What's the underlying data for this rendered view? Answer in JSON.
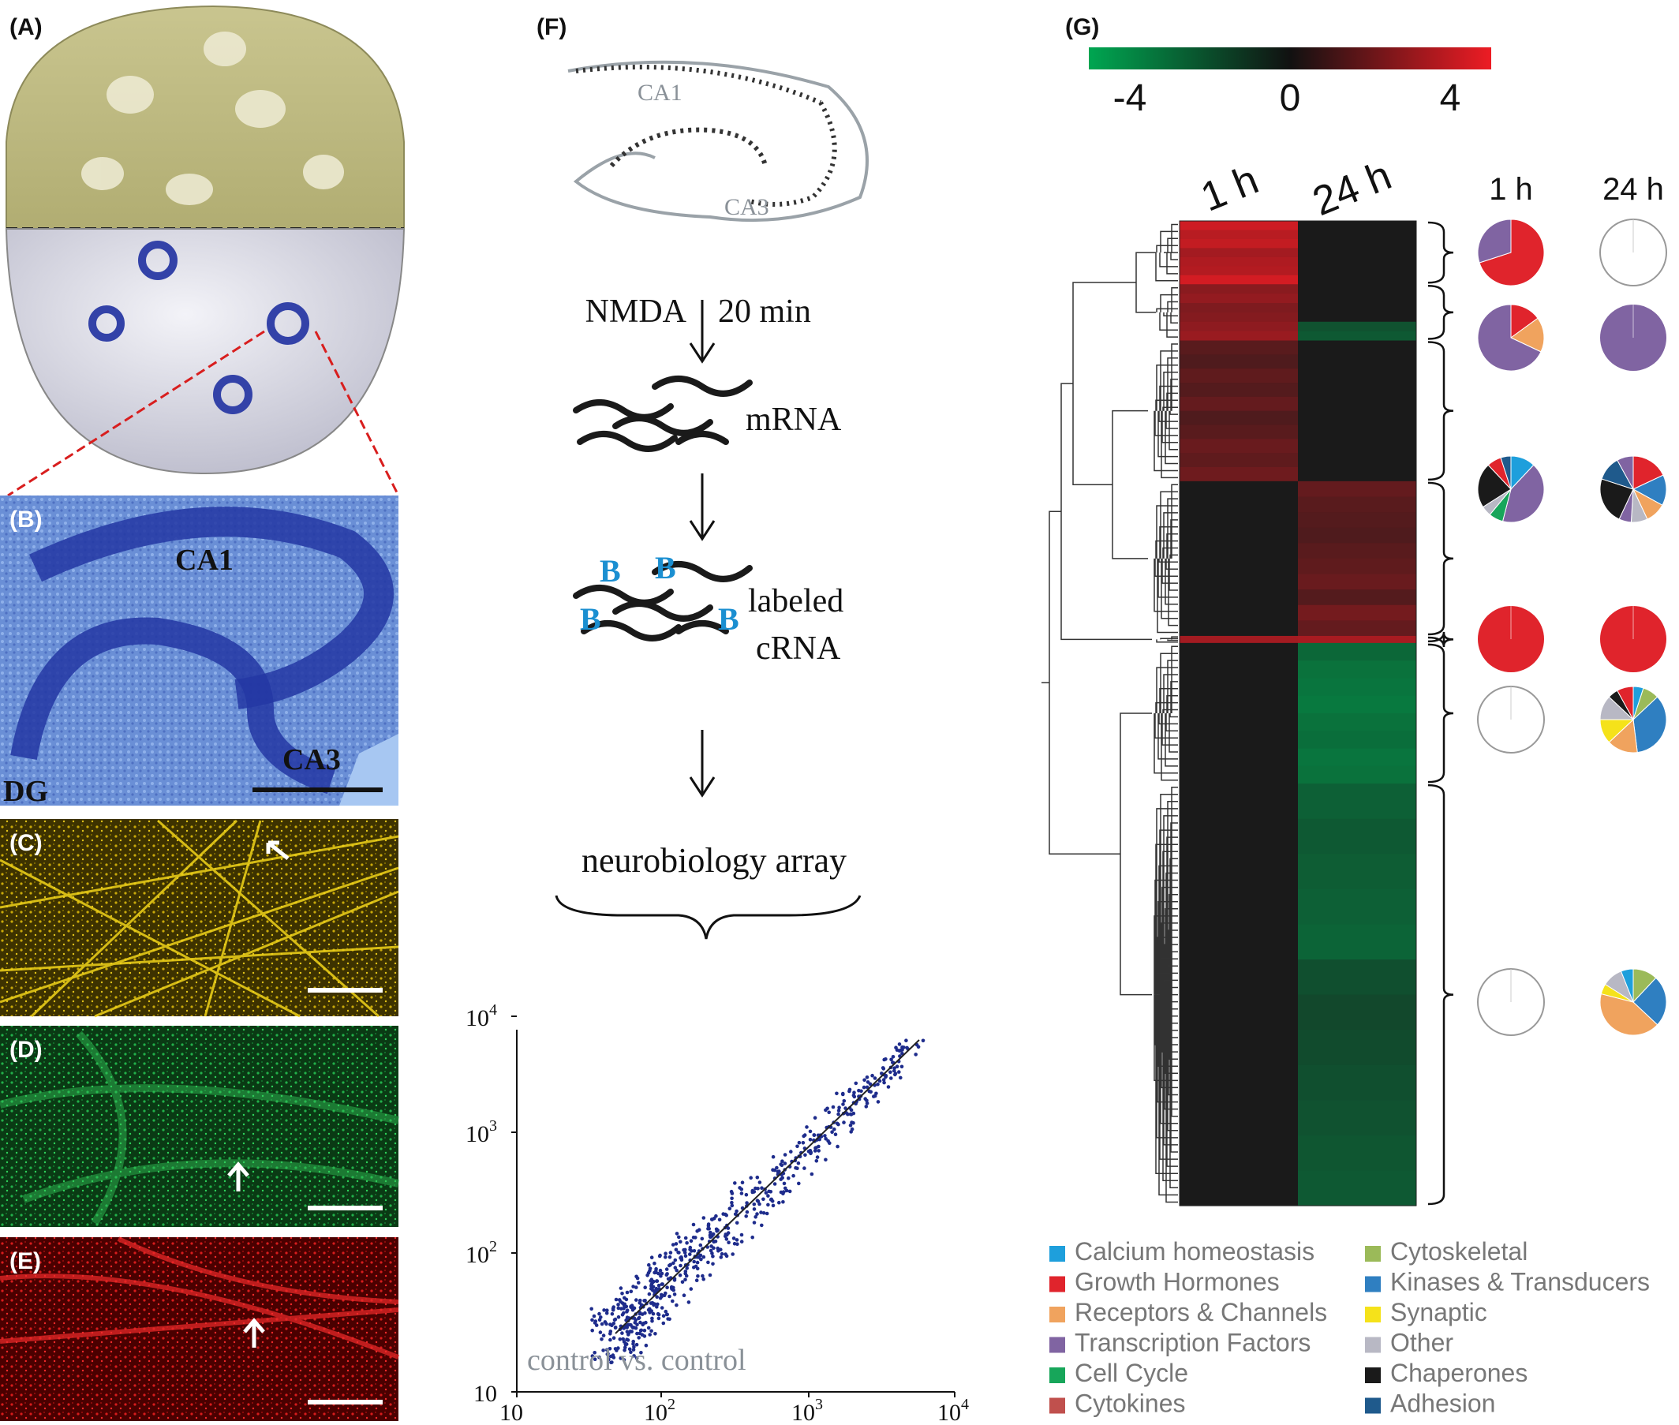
{
  "figure": {
    "panels": {
      "a": "(A)",
      "b": "(B)",
      "c": "(C)",
      "d": "(D)",
      "e": "(E)",
      "f": "(F)",
      "g": "(G)"
    },
    "panel_b_labels": {
      "ca1": "CA1",
      "ca3": "CA3",
      "dg": "DG"
    },
    "workflow": {
      "schematic_labels": {
        "ca1": "CA1",
        "ca3": "CA3"
      },
      "step1": {
        "left": "NMDA",
        "right": "20 min"
      },
      "mrna": "mRNA",
      "biotin": [
        "B",
        "B",
        "B",
        "B"
      ],
      "labeled_line1": "labeled",
      "labeled_line2": "cRNA",
      "array": "neurobiology array"
    },
    "scatter": {
      "annotation": "control vs. control",
      "y_ticks": [
        {
          "base": "10",
          "exp": "4"
        },
        {
          "base": "10",
          "exp": "3"
        },
        {
          "base": "10",
          "exp": "2"
        },
        {
          "base": "10",
          "exp": ""
        }
      ],
      "x_ticks": [
        {
          "base": "10",
          "exp": ""
        },
        {
          "base": "10",
          "exp": "2"
        },
        {
          "base": "10",
          "exp": "3"
        },
        {
          "base": "10",
          "exp": "4"
        }
      ]
    },
    "heatmap": {
      "color_scale": {
        "min": -4,
        "max": 4,
        "low_color": "#00a651",
        "mid_color": "#1a1a1a",
        "high_color": "#ed1c24"
      },
      "colorbar_ticks": [
        "-4",
        "0",
        "4"
      ],
      "columns": [
        "1 h",
        "24 h"
      ],
      "pie_headers": [
        "1 h",
        "24 h"
      ],
      "clusters": [
        {
          "rows": 9,
          "values_1h": [
            3.4,
            3.0,
            3.2,
            2.6,
            2.8,
            2.9,
            3.5
          ],
          "values_24h": [
            0,
            0,
            0,
            0,
            0,
            0,
            0
          ]
        },
        {
          "rows": 8,
          "values_1h": [
            2.1,
            2.3,
            1.9,
            2.0,
            2.2,
            2.4
          ],
          "values_24h": [
            0,
            0,
            0,
            0,
            -1.6,
            -1.8
          ]
        },
        {
          "rows": 20,
          "values_1h": [
            1.2,
            1.0,
            1.3,
            1.1,
            1.4,
            1.0,
            1.2,
            1.5,
            1.3,
            1.6
          ],
          "values_24h": [
            0,
            0,
            0,
            0,
            0,
            0,
            0,
            0,
            0,
            0
          ]
        },
        {
          "rows": 22,
          "values_1h": [
            0,
            0,
            0,
            0,
            0,
            0,
            0,
            0,
            0,
            0
          ],
          "values_24h": [
            1.4,
            1.2,
            1.1,
            1.0,
            1.2,
            1.3,
            1.5,
            1.1,
            1.7,
            1.4
          ]
        },
        {
          "rows": 1,
          "values_1h": [
            2.6
          ],
          "values_24h": [
            2.7
          ]
        },
        {
          "rows": 20,
          "values_1h": [
            0,
            0,
            0,
            0,
            0,
            0,
            0,
            0
          ],
          "values_24h": [
            -2.2,
            -2.5,
            -2.6,
            -2.7,
            -2.5,
            -2.4,
            -2.6,
            -2.5
          ]
        },
        {
          "rows": 60,
          "values_1h": [
            0,
            0,
            0,
            0,
            0,
            0,
            0,
            0,
            0,
            0,
            0,
            0
          ],
          "values_24h": [
            -2.0,
            -1.8,
            -1.9,
            -2.0,
            -2.1,
            -1.5,
            -1.3,
            -1.4,
            -1.5,
            -1.6,
            -1.7,
            -1.8
          ]
        }
      ],
      "pies": [
        {
          "p1h": [
            {
              "category": "Growth Hormones",
              "value": 0.7
            },
            {
              "category": "Transcription Factors",
              "value": 0.3
            }
          ],
          "p24h": []
        },
        {
          "p1h": [
            {
              "category": "Growth Hormones",
              "value": 0.15
            },
            {
              "category": "Receptors & Channels",
              "value": 0.17
            },
            {
              "category": "Transcription Factors",
              "value": 0.68
            }
          ],
          "p24h": [
            {
              "category": "Transcription Factors",
              "value": 1.0
            }
          ]
        },
        {
          "p1h": [
            {
              "category": "Calcium homeostasis",
              "value": 0.12
            },
            {
              "category": "Transcription Factors",
              "value": 0.42
            },
            {
              "category": "Cell Cycle",
              "value": 0.07
            },
            {
              "category": "Other",
              "value": 0.05
            },
            {
              "category": "Chaperones",
              "value": 0.22
            },
            {
              "category": "Growth Hormones",
              "value": 0.07
            },
            {
              "category": "Adhesion",
              "value": 0.05
            }
          ],
          "p24h": [
            {
              "category": "Growth Hormones",
              "value": 0.18
            },
            {
              "category": "Kinases & Transducers",
              "value": 0.15
            },
            {
              "category": "Receptors & Channels",
              "value": 0.1
            },
            {
              "category": "Other",
              "value": 0.08
            },
            {
              "category": "Transcription Factors",
              "value": 0.06
            },
            {
              "category": "Chaperones",
              "value": 0.23
            },
            {
              "category": "Adhesion",
              "value": 0.12
            },
            {
              "category": "Transcription Factors",
              "value": 0.08
            }
          ]
        },
        {
          "p1h": [
            {
              "category": "Growth Hormones",
              "value": 1.0
            }
          ],
          "p24h": [
            {
              "category": "Growth Hormones",
              "value": 1.0
            }
          ]
        },
        {
          "p1h": [],
          "p24h": [
            {
              "category": "Calcium homeostasis",
              "value": 0.05
            },
            {
              "category": "Cytoskeletal",
              "value": 0.08
            },
            {
              "category": "Kinases & Transducers",
              "value": 0.35
            },
            {
              "category": "Receptors & Channels",
              "value": 0.15
            },
            {
              "category": "Synaptic",
              "value": 0.12
            },
            {
              "category": "Other",
              "value": 0.12
            },
            {
              "category": "Chaperones",
              "value": 0.05
            },
            {
              "category": "Growth Hormones",
              "value": 0.08
            }
          ]
        },
        {
          "p1h": [],
          "p24h": [
            {
              "category": "Cytoskeletal",
              "value": 0.12
            },
            {
              "category": "Kinases & Transducers",
              "value": 0.25
            },
            {
              "category": "Receptors & Channels",
              "value": 0.42
            },
            {
              "category": "Synaptic",
              "value": 0.05
            },
            {
              "category": "Other",
              "value": 0.1
            },
            {
              "category": "Calcium homeostasis",
              "value": 0.06
            }
          ]
        }
      ]
    },
    "legend": [
      {
        "label": "Calcium homeostasis",
        "color": "#1e9fdc"
      },
      {
        "label": "Cytoskeletal",
        "color": "#9bba59"
      },
      {
        "label": "Growth Hormones",
        "color": "#e0242c"
      },
      {
        "label": "Kinases & Transducers",
        "color": "#2f7fc1"
      },
      {
        "label": "Receptors & Channels",
        "color": "#f0a35e"
      },
      {
        "label": "Synaptic",
        "color": "#f5e21a"
      },
      {
        "label": "Transcription Factors",
        "color": "#8064a2"
      },
      {
        "label": "Other",
        "color": "#b8b8c4"
      },
      {
        "label": "Cell Cycle",
        "color": "#17a65a"
      },
      {
        "label": "Chaperones",
        "color": "#1a1a1a"
      },
      {
        "label": "Cytokines",
        "color": "#c0504d"
      },
      {
        "label": "Adhesion",
        "color": "#1f5a8c"
      }
    ]
  }
}
